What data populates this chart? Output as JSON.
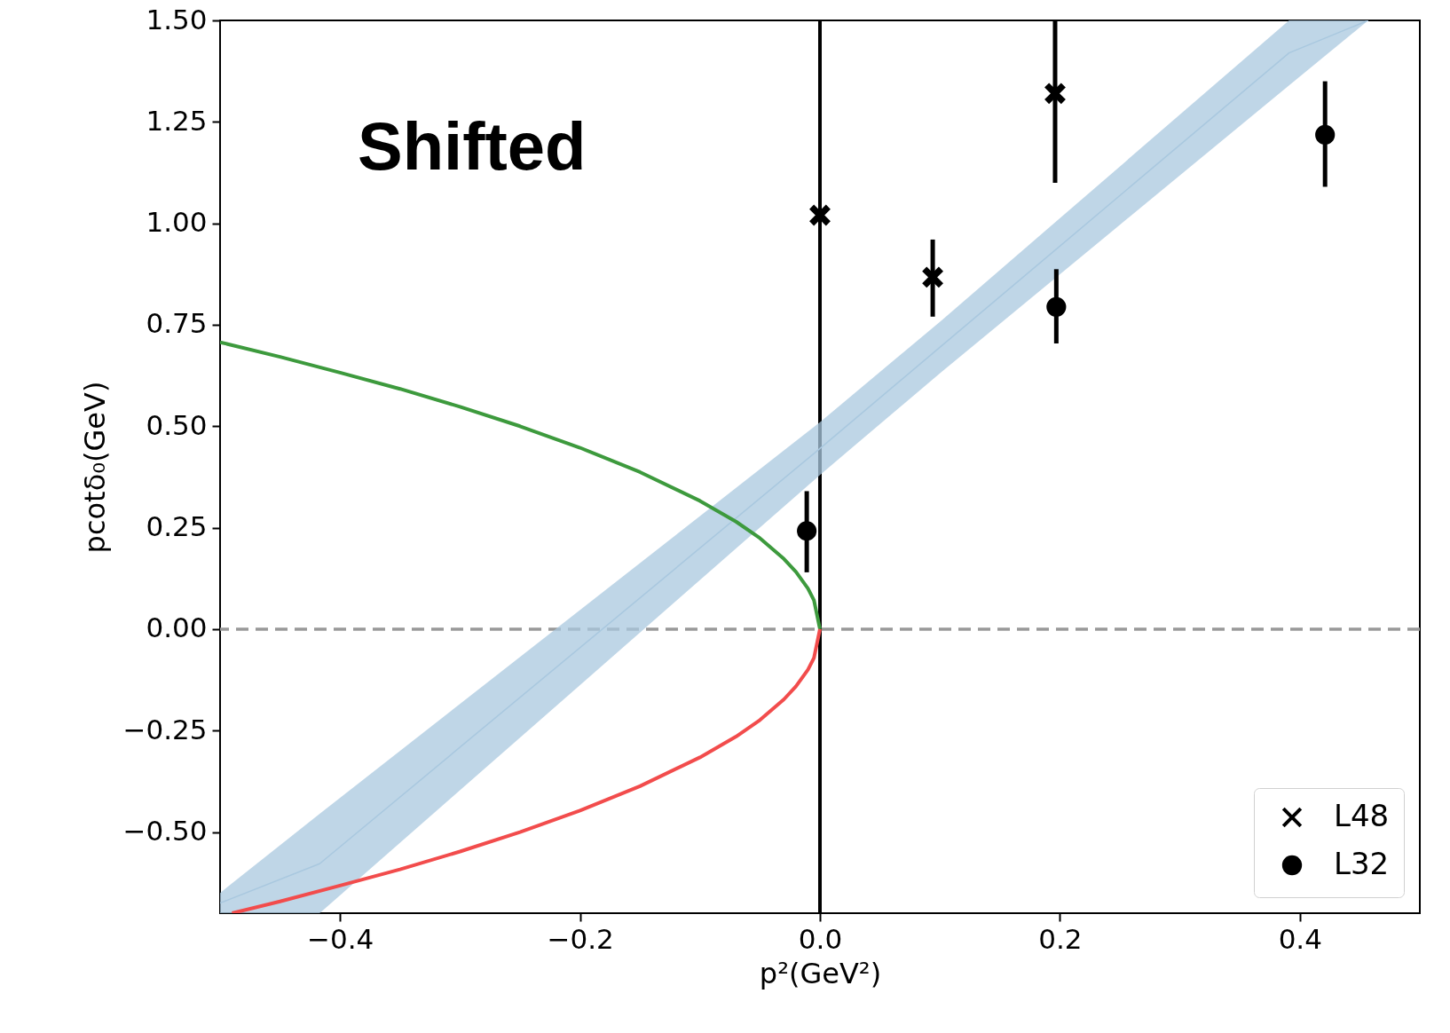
{
  "chart_data": {
    "type": "scatter",
    "annotations": [
      "Shifted"
    ],
    "xlabel": "p²(GeV²)",
    "ylabel": "pcotδ₀(GeV)",
    "xlim": [
      -0.5,
      0.5
    ],
    "ylim": [
      -0.7,
      1.5
    ],
    "xticks": [
      {
        "value": -0.4,
        "label": "−0.4"
      },
      {
        "value": -0.2,
        "label": "−0.2"
      },
      {
        "value": 0,
        "label": "0.0"
      },
      {
        "value": 0.2,
        "label": "0.2"
      },
      {
        "value": 0.4,
        "label": "0.4"
      }
    ],
    "yticks": [
      {
        "value": -0.5,
        "label": "−0.50"
      },
      {
        "value": -0.25,
        "label": "−0.25"
      },
      {
        "value": 0,
        "label": "0.00"
      },
      {
        "value": 0.25,
        "label": "0.25"
      },
      {
        "value": 0.5,
        "label": "0.50"
      },
      {
        "value": 0.75,
        "label": "0.75"
      },
      {
        "value": 1,
        "label": "1.00"
      },
      {
        "value": 1.25,
        "label": "1.25"
      },
      {
        "value": 1.5,
        "label": "1.50"
      }
    ],
    "grid": false,
    "legend": "bottom right",
    "ref_lines": [
      {
        "axis": "y",
        "value": 0,
        "color": "#999999",
        "line_style": "dashed"
      },
      {
        "axis": "x",
        "value": 0,
        "color": "#000000",
        "line_style": "solid"
      }
    ],
    "series": [
      {
        "type": "line",
        "color": "#a9c8df",
        "x": [
          -0.5,
          -0.417,
          0,
          0.101,
          0.391,
          0.457
        ],
        "values": [
          -0.675,
          -0.578,
          0.445,
          0.697,
          1.42,
          1.5
        ],
        "lower": [
          -0.7,
          -0.7,
          0.38,
          0.633,
          1.34,
          1.5
        ],
        "upper": [
          -0.65,
          -0.455,
          0.51,
          0.76,
          1.5,
          1.5
        ]
      },
      {
        "type": "line",
        "color": "#3d9a3d",
        "marker": "none",
        "x": [
          -0.5,
          -0.45,
          -0.4,
          -0.35,
          -0.3,
          -0.25,
          -0.2,
          -0.15,
          -0.1,
          -0.07,
          -0.05,
          -0.03,
          -0.02,
          -0.01,
          -0.005,
          0
        ],
        "values": [
          0.707,
          0.671,
          0.632,
          0.592,
          0.548,
          0.5,
          0.447,
          0.387,
          0.316,
          0.265,
          0.224,
          0.173,
          0.141,
          0.1,
          0.071,
          0
        ]
      },
      {
        "type": "line",
        "color": "#f24c4c",
        "marker": "none",
        "x": [
          -0.49,
          -0.45,
          -0.4,
          -0.35,
          -0.3,
          -0.25,
          -0.2,
          -0.15,
          -0.1,
          -0.07,
          -0.05,
          -0.03,
          -0.02,
          -0.01,
          -0.005,
          0
        ],
        "values": [
          -0.7,
          -0.671,
          -0.632,
          -0.592,
          -0.548,
          -0.5,
          -0.447,
          -0.387,
          -0.316,
          -0.265,
          -0.224,
          -0.173,
          -0.141,
          -0.1,
          -0.071,
          0
        ]
      },
      {
        "name": "L48",
        "color": "#000000",
        "marker": "cross",
        "x": [
          0,
          0.094,
          0.196
        ],
        "values": [
          1.02,
          0.867,
          1.32
        ],
        "errors": [
          null,
          [
            0.77,
            0.96
          ],
          [
            1.1,
            1.5
          ]
        ]
      },
      {
        "name": "L32",
        "color": "#000000",
        "marker": "circle",
        "x": [
          -0.011,
          0.197,
          0.421
        ],
        "values": [
          0.242,
          0.794,
          1.218
        ],
        "errors": [
          [
            0.14,
            0.34
          ],
          [
            0.704,
            0.887
          ],
          [
            1.09,
            1.35
          ]
        ]
      }
    ]
  }
}
